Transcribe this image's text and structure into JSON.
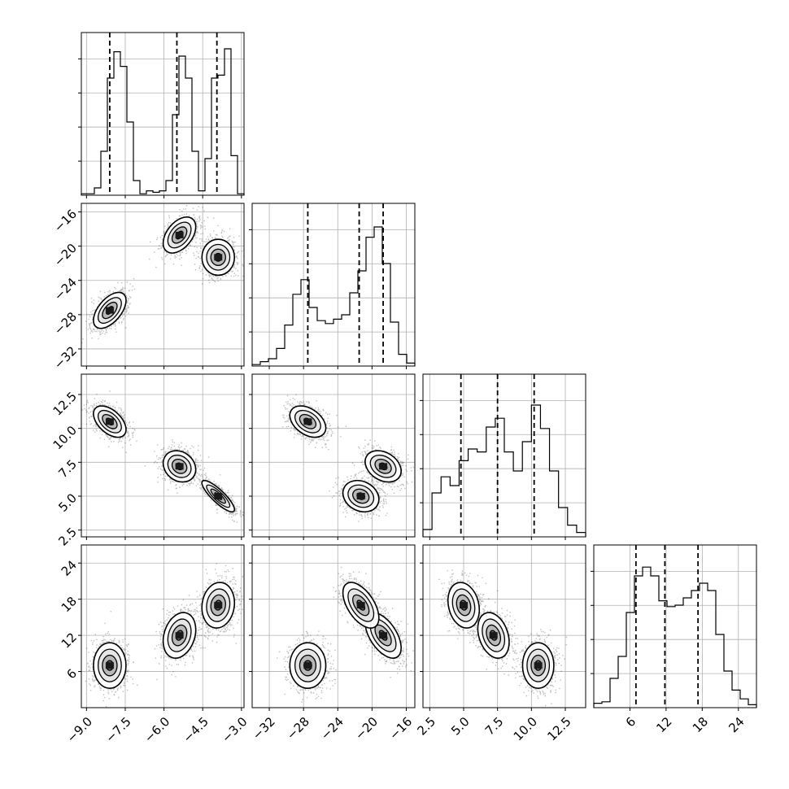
{
  "chart_data": {
    "type": "corner",
    "grid": true,
    "parameters": [
      {
        "range": [
          -9.2,
          -2.9
        ],
        "ticks": [
          -9.0,
          -7.5,
          -6.0,
          -4.5,
          -3.0
        ],
        "tick_labels": [
          "−9.0",
          "−7.5",
          "−6.0",
          "−4.5",
          "−3.0"
        ],
        "quantiles": [
          -8.1,
          -5.5,
          -3.95
        ]
      },
      {
        "range": [
          -34,
          -15
        ],
        "ticks": [
          -32,
          -28,
          -24,
          -20,
          -16
        ],
        "tick_labels": [
          "−32",
          "−28",
          "−24",
          "−20",
          "−16"
        ],
        "quantiles": [
          -27.5,
          -21.5,
          -18.7
        ]
      },
      {
        "range": [
          2,
          14
        ],
        "ticks": [
          2.5,
          5.0,
          7.5,
          10.0,
          12.5
        ],
        "tick_labels": [
          "2.5",
          "5.0",
          "7.5",
          "10.0",
          "12.5"
        ],
        "quantiles": [
          4.8,
          7.5,
          10.2
        ]
      },
      {
        "range": [
          0,
          27
        ],
        "ticks": [
          6,
          12,
          18,
          24
        ],
        "tick_labels": [
          "6",
          "12",
          "18",
          "24"
        ],
        "quantiles": [
          7.0,
          11.8,
          17.3
        ]
      }
    ],
    "histograms": [
      [
        0.01,
        0.01,
        0.05,
        0.3,
        0.8,
        0.98,
        0.88,
        0.5,
        0.1,
        0.01,
        0.03,
        0.02,
        0.03,
        0.1,
        0.55,
        0.95,
        0.8,
        0.3,
        0.03,
        0.25,
        0.8,
        0.82,
        1.0,
        0.27,
        0.01
      ],
      [
        0.01,
        0.03,
        0.05,
        0.12,
        0.28,
        0.49,
        0.59,
        0.4,
        0.31,
        0.29,
        0.32,
        0.35,
        0.5,
        0.65,
        0.88,
        0.95,
        0.7,
        0.3,
        0.08,
        0.02
      ],
      [
        0.05,
        0.3,
        0.41,
        0.35,
        0.52,
        0.6,
        0.58,
        0.75,
        0.81,
        0.58,
        0.45,
        0.65,
        0.9,
        0.74,
        0.45,
        0.2,
        0.08,
        0.03
      ],
      [
        0.03,
        0.04,
        0.2,
        0.35,
        0.65,
        0.9,
        0.96,
        0.9,
        0.73,
        0.69,
        0.7,
        0.75,
        0.8,
        0.85,
        0.8,
        0.5,
        0.25,
        0.12,
        0.06,
        0.02
      ]
    ],
    "clusters": [
      [
        -8.1,
        -27.5,
        10.5,
        7.0
      ],
      [
        -5.4,
        -18.7,
        7.2,
        12.0
      ],
      [
        -3.9,
        -21.3,
        5.0,
        17.0
      ]
    ],
    "cluster_spread": [
      0.3,
      1.0,
      0.55,
      1.8
    ],
    "pair_correlations": [
      {
        "pair": [
          0,
          1
        ],
        "rho": [
          0.55,
          0.45,
          0.0
        ]
      },
      {
        "pair": [
          0,
          2
        ],
        "rho": [
          -0.5,
          -0.2,
          -0.85
        ]
      },
      {
        "pair": [
          0,
          3
        ],
        "rho": [
          0.0,
          0.25,
          0.1
        ]
      },
      {
        "pair": [
          1,
          2
        ],
        "rho": [
          -0.4,
          -0.3,
          -0.2
        ]
      },
      {
        "pair": [
          1,
          3
        ],
        "rho": [
          0.0,
          -0.55,
          -0.55
        ]
      },
      {
        "pair": [
          2,
          3
        ],
        "rho": [
          0.0,
          -0.3,
          -0.2
        ]
      }
    ]
  }
}
